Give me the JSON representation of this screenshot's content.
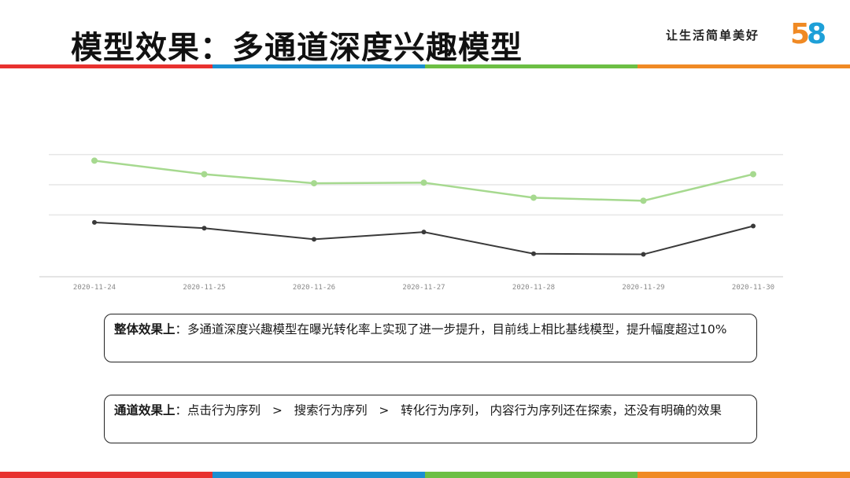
{
  "header": {
    "title": "模型效果：多通道深度兴趣模型",
    "slogan": "让生活简单美好",
    "logo_text": "58"
  },
  "colors": {
    "band": [
      "#e8312f",
      "#1a8fd1",
      "#6cbf44",
      "#f08a24"
    ],
    "green_series": "#a6d98f",
    "dark_series": "#3a3a3a",
    "grid": "#e6e6e6"
  },
  "chart_data": {
    "type": "line",
    "x": [
      "2020-11-24",
      "2020-11-25",
      "2020-11-26",
      "2020-11-27",
      "2020-11-28",
      "2020-11-29",
      "2020-11-30"
    ],
    "series": [
      {
        "values": [
          3.8,
          3.35,
          3.05,
          3.07,
          2.57,
          2.47,
          3.35
        ]
      },
      {
        "values": [
          1.75,
          1.56,
          1.19,
          1.43,
          0.71,
          0.69,
          1.63
        ]
      }
    ],
    "ylim": [
      0,
      6
    ],
    "grid": true
  },
  "notes": [
    {
      "label": "整体效果上",
      "sep": "：",
      "text": "多通道深度兴趣模型在曝光转化率上实现了进一步提升，目前线上相比基线模型，提升幅度超过10%"
    },
    {
      "label": "通道效果上",
      "sep": "：",
      "text": "点击行为序列   >   搜索行为序列   >   转化行为序列， 内容行为序列还在探索，还没有明确的效果"
    }
  ]
}
